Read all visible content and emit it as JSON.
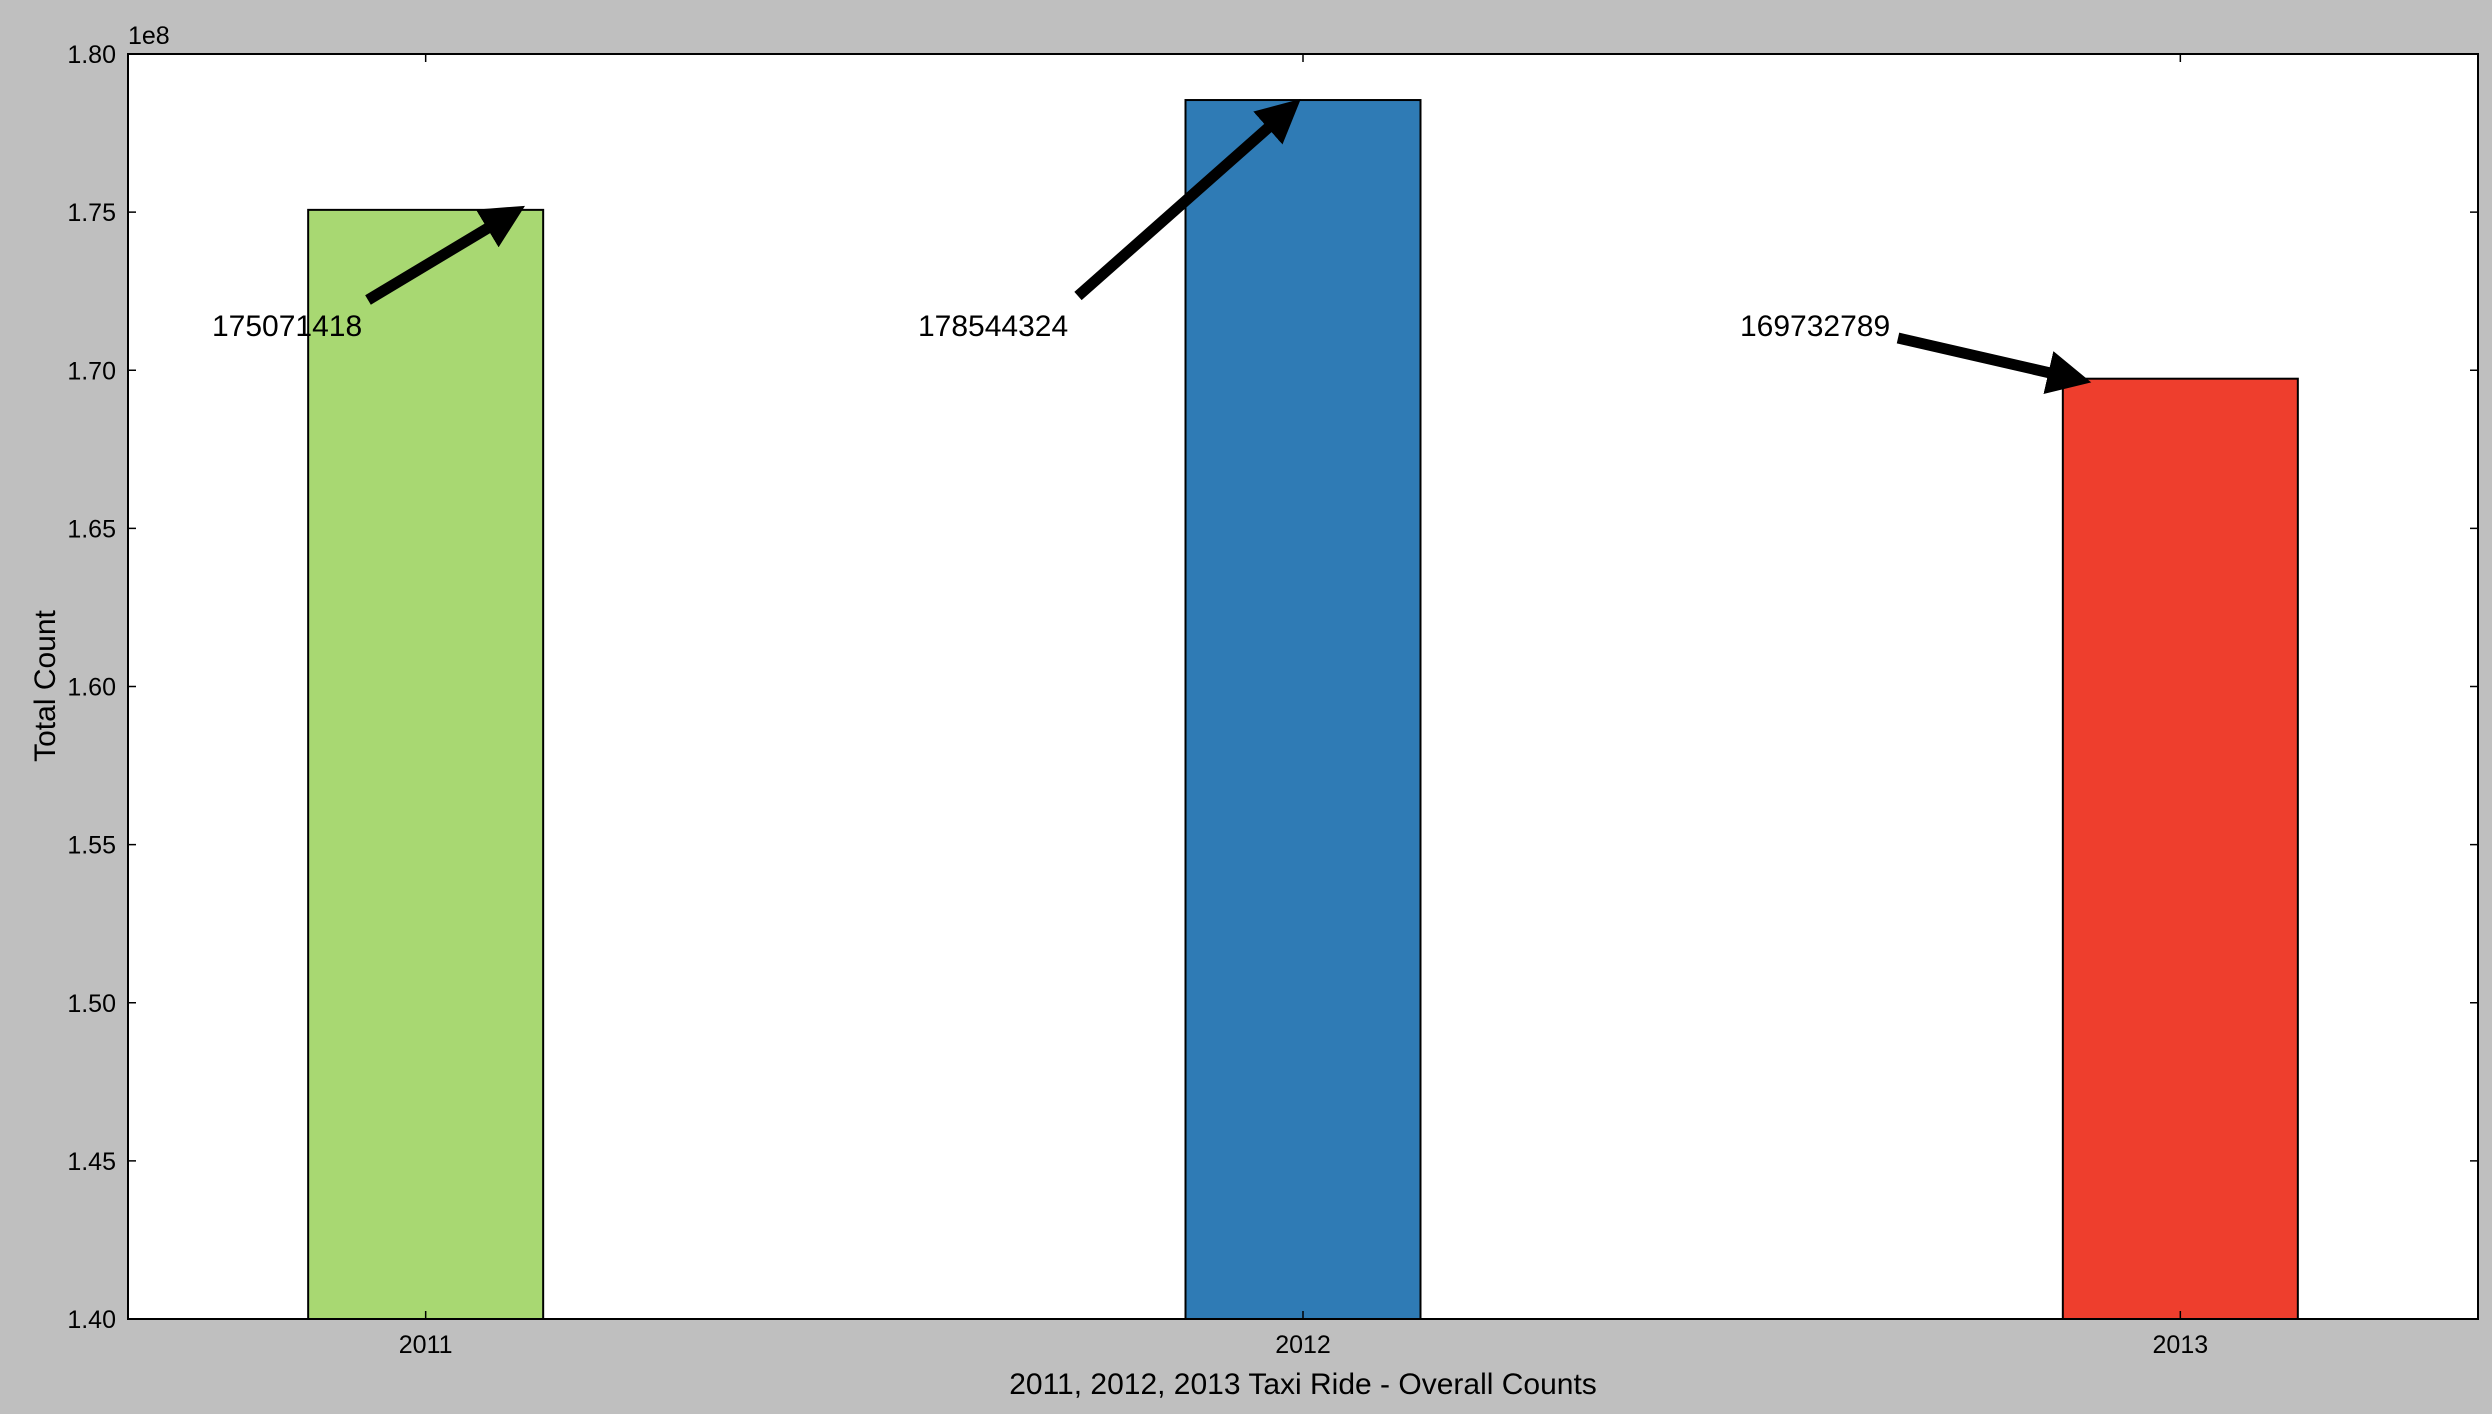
{
  "chart_data": {
    "type": "bar",
    "categories": [
      "2011",
      "2012",
      "2013"
    ],
    "values": [
      175071418,
      178544324,
      169732789
    ],
    "colors": [
      "#a8d872",
      "#2f7bb5",
      "#ee3e2d"
    ],
    "xlabel": "2011, 2012, 2013 Taxi Ride - Overall Counts",
    "ylabel": "Total Count",
    "ylim": [
      140000000,
      180000000
    ],
    "y_ticks": [
      "1.40",
      "1.45",
      "1.50",
      "1.55",
      "1.60",
      "1.65",
      "1.70",
      "1.75",
      "1.80"
    ],
    "y_offset_label": "1e8",
    "annotations": [
      "175071418",
      "178544324",
      "169732789"
    ],
    "grid": false,
    "legend": "none"
  }
}
